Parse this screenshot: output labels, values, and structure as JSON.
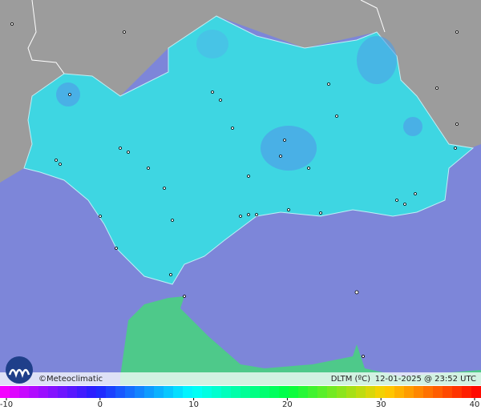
{
  "header": {
    "credit": "©Meteoclimatic",
    "variable": "DLTM (ºC)",
    "timestamp": "12-01-2025 @ 23:52 UTC"
  },
  "scale": {
    "range": [
      -10,
      40
    ],
    "ticks": [
      -10,
      0,
      10,
      20,
      30,
      40
    ],
    "colors": [
      "#ff00ff",
      "#2020ff",
      "#00ffff",
      "#00ff40",
      "#ffd000",
      "#ff0000"
    ]
  }
}
